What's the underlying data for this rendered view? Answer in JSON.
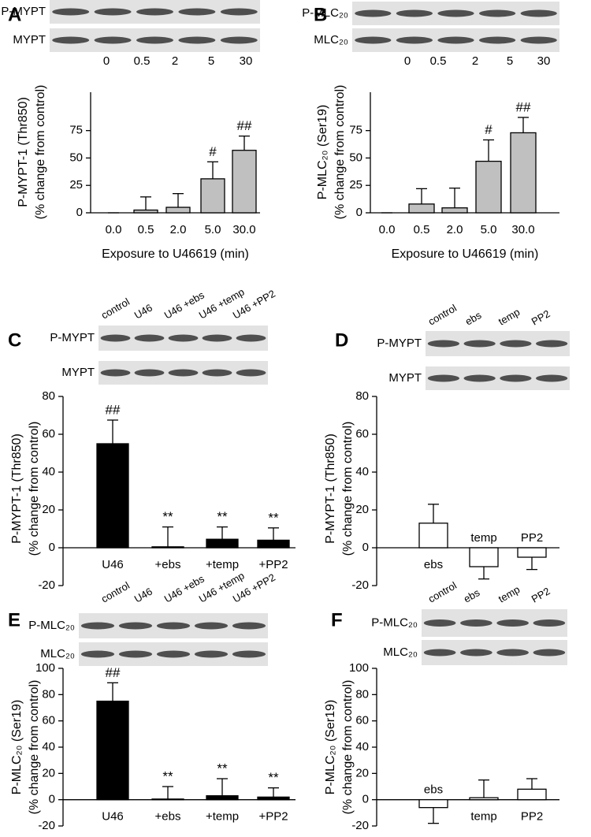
{
  "chart_data": [
    {
      "type": "bar",
      "panel": "A",
      "blot_rows": [
        "P-MYPT",
        "MYPT"
      ],
      "blot_lanes": [
        "0",
        "0.5",
        "2",
        "5",
        "30"
      ],
      "y_label": [
        "P-MYPT-1 (Thr850)",
        "(% change from control)"
      ],
      "x_label": "Exposure to U46619 (min)",
      "categories": [
        "0.0",
        "0.5",
        "2.0",
        "5.0",
        "30.0"
      ],
      "values": [
        0,
        2.5,
        5,
        31,
        57
      ],
      "errors": [
        0,
        12,
        12.5,
        15.5,
        13
      ],
      "annotations": [
        null,
        null,
        null,
        "#",
        "##"
      ],
      "color": "#c0c0c0",
      "ylim": [
        0,
        110
      ],
      "yticks": [
        0,
        25,
        50,
        75
      ]
    },
    {
      "type": "bar",
      "panel": "B",
      "blot_rows": [
        "P-MLC₂₀",
        "MLC₂₀"
      ],
      "blot_lanes": [
        "0",
        "0.5",
        "2",
        "5",
        "30"
      ],
      "y_label": [
        "P-MLC₂₀ (Ser19)",
        "(% change from control)"
      ],
      "x_label": "Exposure to U46619 (min)",
      "categories": [
        "0.0",
        "0.5",
        "2.0",
        "5.0",
        "30.0"
      ],
      "values": [
        0,
        8,
        4.5,
        47,
        73
      ],
      "errors": [
        0,
        14,
        18,
        19.5,
        14
      ],
      "annotations": [
        null,
        null,
        null,
        "#",
        "##"
      ],
      "color": "#c0c0c0",
      "ylim": [
        0,
        110
      ],
      "yticks": [
        0,
        25,
        50,
        75
      ]
    },
    {
      "type": "bar",
      "panel": "C",
      "blot_rows": [
        "P-MYPT",
        "MYPT"
      ],
      "blot_lanes": [
        "control",
        "U46",
        "U46 +ebs",
        "U46 +temp",
        "U46 +PP2"
      ],
      "y_label": [
        "P-MYPT-1 (Thr850)",
        "(% change from control)"
      ],
      "categories": [
        "U46",
        "+ebs",
        "+temp",
        "+PP2"
      ],
      "values": [
        55,
        0.5,
        4.5,
        4
      ],
      "errors": [
        12.5,
        10.5,
        6.5,
        6.5
      ],
      "annotations": [
        "##",
        "**",
        "**",
        "**"
      ],
      "color": "#000000",
      "ylim": [
        -20,
        80
      ],
      "yticks": [
        -20,
        0,
        20,
        40,
        60,
        80
      ]
    },
    {
      "type": "bar",
      "panel": "D",
      "blot_rows": [
        "P-MYPT",
        "MYPT"
      ],
      "blot_lanes": [
        "control",
        "ebs",
        "temp",
        "PP2"
      ],
      "y_label": [
        "P-MYPT-1 (Thr850)",
        "(% change from control)"
      ],
      "categories": [
        "ebs",
        "temp",
        "PP2"
      ],
      "values": [
        13,
        -10,
        -5
      ],
      "errors": [
        10,
        6.5,
        6.5
      ],
      "color": "#ffffff",
      "ylim": [
        -20,
        80
      ],
      "yticks": [
        -20,
        0,
        20,
        40,
        60,
        80
      ]
    },
    {
      "type": "bar",
      "panel": "E",
      "blot_rows": [
        "P-MLC₂₀",
        "MLC₂₀"
      ],
      "blot_lanes": [
        "control",
        "U46",
        "U46 +ebs",
        "U46 +temp",
        "U46 +PP2"
      ],
      "y_label": [
        "P-MLC₂₀ (Ser19)",
        "(% change from control)"
      ],
      "categories": [
        "U46",
        "+ebs",
        "+temp",
        "+PP2"
      ],
      "values": [
        75,
        0.5,
        3,
        2
      ],
      "errors": [
        14,
        9.5,
        13,
        7
      ],
      "annotations": [
        "##",
        "**",
        "**",
        "**"
      ],
      "color": "#000000",
      "ylim": [
        -20,
        100
      ],
      "yticks": [
        -20,
        0,
        20,
        40,
        60,
        80,
        100
      ]
    },
    {
      "type": "bar",
      "panel": "F",
      "blot_rows": [
        "P-MLC₂₀",
        "MLC₂₀"
      ],
      "blot_lanes": [
        "control",
        "ebs",
        "temp",
        "PP2"
      ],
      "y_label": [
        "P-MLC₂₀ (Ser19)",
        "(% change from control)"
      ],
      "categories": [
        "ebs",
        "temp",
        "PP2"
      ],
      "values": [
        -6,
        1.5,
        8
      ],
      "errors": [
        12,
        13.5,
        8
      ],
      "color": "#ffffff",
      "ylim": [
        -20,
        100
      ],
      "yticks": [
        -20,
        0,
        20,
        40,
        60,
        80,
        100
      ]
    }
  ]
}
